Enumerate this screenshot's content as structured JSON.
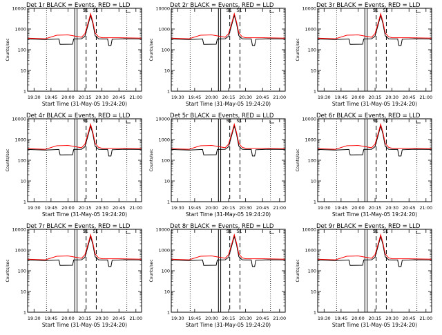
{
  "colors": {
    "events": "#000000",
    "lld": "#ff0000",
    "axes": "#000000",
    "background": "#ffffff"
  },
  "shared": {
    "ylabel": "Counts/sec",
    "xlabel": "Start Time (31-May-05 19:24:20)",
    "x_ticks": [
      "19:30",
      "19:45",
      "20:00",
      "20:15",
      "20:30",
      "20:45",
      "21:00"
    ],
    "y_ticks": [
      "1",
      "10",
      "100",
      "1000",
      "10000"
    ],
    "legend_marks": [
      "S1",
      "S1"
    ]
  },
  "chart_data": [
    {
      "type": "line",
      "title": "Det 1r BLACK = Events, RED = LLD",
      "xlim": [
        "19:24:20",
        "21:05"
      ],
      "ylim": [
        1,
        10000
      ],
      "y_scale": "log",
      "series": [
        {
          "name": "Events",
          "color": "#000000",
          "x": [
            "19:24",
            "19:40",
            "19:52",
            "19:53",
            "20:04",
            "20:05",
            "20:12",
            "20:15",
            "20:18",
            "20:20",
            "20:22",
            "20:24",
            "20:27",
            "20:30",
            "20:35",
            "20:36",
            "20:38",
            "20:39",
            "20:50",
            "21:05"
          ],
          "y": [
            330,
            310,
            330,
            180,
            185,
            330,
            340,
            450,
            1800,
            4500,
            1800,
            480,
            340,
            330,
            330,
            160,
            160,
            320,
            340,
            330
          ]
        },
        {
          "name": "LLD",
          "color": "#ff0000",
          "x": [
            "19:24",
            "19:40",
            "19:50",
            "20:00",
            "20:12",
            "20:15",
            "20:18",
            "20:20",
            "20:22",
            "20:24",
            "20:27",
            "20:30",
            "20:45",
            "21:05"
          ],
          "y": [
            360,
            340,
            500,
            520,
            400,
            600,
            2200,
            5500,
            2200,
            650,
            420,
            380,
            380,
            360
          ]
        }
      ],
      "markers": {
        "solid": [
          "20:06",
          "20:08"
        ],
        "dashed": [
          "20:16",
          "20:25"
        ],
        "dotted": [
          "19:41",
          "20:52"
        ]
      }
    },
    {
      "type": "line",
      "title": "Det 2r BLACK = Events, RED = LLD",
      "xlim": [
        "19:24:20",
        "21:05"
      ],
      "ylim": [
        1,
        10000
      ],
      "y_scale": "log",
      "series": [
        {
          "name": "Events",
          "color": "#000000",
          "x": [
            "19:24",
            "19:40",
            "19:52",
            "19:53",
            "20:04",
            "20:05",
            "20:12",
            "20:15",
            "20:18",
            "20:20",
            "20:22",
            "20:24",
            "20:27",
            "20:30",
            "20:35",
            "20:36",
            "20:38",
            "20:39",
            "20:50",
            "21:05"
          ],
          "y": [
            330,
            310,
            330,
            180,
            185,
            330,
            340,
            450,
            1800,
            4500,
            1800,
            480,
            340,
            330,
            330,
            160,
            160,
            320,
            340,
            330
          ]
        },
        {
          "name": "LLD",
          "color": "#ff0000",
          "x": [
            "19:24",
            "19:40",
            "19:50",
            "20:00",
            "20:12",
            "20:15",
            "20:18",
            "20:20",
            "20:22",
            "20:24",
            "20:27",
            "20:30",
            "20:45",
            "21:05"
          ],
          "y": [
            360,
            340,
            500,
            520,
            400,
            600,
            2200,
            5500,
            2200,
            650,
            420,
            380,
            380,
            360
          ]
        }
      ],
      "markers": {
        "solid": [
          "20:06",
          "20:08"
        ],
        "dashed": [
          "20:16",
          "20:25"
        ],
        "dotted": [
          "19:41",
          "20:52"
        ]
      }
    },
    {
      "type": "line",
      "title": "Det 3r BLACK = Events, RED = LLD",
      "xlim": [
        "19:24:20",
        "21:05"
      ],
      "ylim": [
        1,
        10000
      ],
      "y_scale": "log",
      "series": [
        {
          "name": "Events",
          "color": "#000000",
          "x": [
            "19:24",
            "19:40",
            "19:52",
            "19:53",
            "20:04",
            "20:05",
            "20:12",
            "20:15",
            "20:18",
            "20:20",
            "20:22",
            "20:24",
            "20:27",
            "20:30",
            "20:35",
            "20:36",
            "20:38",
            "20:39",
            "20:50",
            "21:05"
          ],
          "y": [
            330,
            310,
            330,
            180,
            185,
            330,
            340,
            450,
            1800,
            4500,
            1800,
            480,
            340,
            330,
            330,
            160,
            160,
            320,
            340,
            330
          ]
        },
        {
          "name": "LLD",
          "color": "#ff0000",
          "x": [
            "19:24",
            "19:40",
            "19:50",
            "20:00",
            "20:12",
            "20:15",
            "20:18",
            "20:20",
            "20:22",
            "20:24",
            "20:27",
            "20:30",
            "20:45",
            "21:05"
          ],
          "y": [
            360,
            340,
            500,
            520,
            400,
            600,
            2200,
            5500,
            2200,
            650,
            420,
            380,
            380,
            360
          ]
        }
      ],
      "markers": {
        "solid": [
          "20:06",
          "20:08"
        ],
        "dashed": [
          "20:16",
          "20:25"
        ],
        "dotted": [
          "19:41",
          "20:52"
        ]
      }
    },
    {
      "type": "line",
      "title": "Det 4r BLACK = Events, RED = LLD",
      "xlim": [
        "19:24:20",
        "21:05"
      ],
      "ylim": [
        1,
        10000
      ],
      "y_scale": "log",
      "series": [
        {
          "name": "Events",
          "color": "#000000",
          "x": [
            "19:24",
            "19:40",
            "19:52",
            "19:53",
            "20:04",
            "20:05",
            "20:12",
            "20:15",
            "20:18",
            "20:20",
            "20:22",
            "20:24",
            "20:27",
            "20:30",
            "20:35",
            "20:36",
            "20:38",
            "20:39",
            "20:50",
            "21:05"
          ],
          "y": [
            330,
            310,
            330,
            180,
            185,
            330,
            340,
            450,
            1800,
            4500,
            1800,
            480,
            340,
            330,
            330,
            160,
            160,
            320,
            340,
            330
          ]
        },
        {
          "name": "LLD",
          "color": "#ff0000",
          "x": [
            "19:24",
            "19:40",
            "19:50",
            "20:00",
            "20:12",
            "20:15",
            "20:18",
            "20:20",
            "20:22",
            "20:24",
            "20:27",
            "20:30",
            "20:45",
            "21:05"
          ],
          "y": [
            360,
            340,
            500,
            520,
            400,
            600,
            2200,
            5500,
            2200,
            650,
            420,
            380,
            380,
            360
          ]
        }
      ],
      "markers": {
        "solid": [
          "20:06",
          "20:08"
        ],
        "dashed": [
          "20:16",
          "20:25"
        ],
        "dotted": [
          "19:41",
          "20:52"
        ]
      }
    },
    {
      "type": "line",
      "title": "Det 5r BLACK = Events, RED = LLD",
      "xlim": [
        "19:24:20",
        "21:05"
      ],
      "ylim": [
        1,
        10000
      ],
      "y_scale": "log",
      "series": [
        {
          "name": "Events",
          "color": "#000000",
          "x": [
            "19:24",
            "19:40",
            "19:52",
            "19:53",
            "20:04",
            "20:05",
            "20:12",
            "20:15",
            "20:18",
            "20:20",
            "20:22",
            "20:24",
            "20:27",
            "20:30",
            "20:35",
            "20:36",
            "20:38",
            "20:39",
            "20:50",
            "21:05"
          ],
          "y": [
            330,
            310,
            330,
            180,
            185,
            330,
            340,
            450,
            1800,
            4500,
            1800,
            480,
            340,
            330,
            330,
            160,
            160,
            320,
            340,
            330
          ]
        },
        {
          "name": "LLD",
          "color": "#ff0000",
          "x": [
            "19:24",
            "19:40",
            "19:50",
            "20:00",
            "20:12",
            "20:15",
            "20:18",
            "20:20",
            "20:22",
            "20:24",
            "20:27",
            "20:30",
            "20:45",
            "21:05"
          ],
          "y": [
            360,
            340,
            500,
            520,
            400,
            600,
            2200,
            5500,
            2200,
            650,
            420,
            380,
            380,
            360
          ]
        }
      ],
      "markers": {
        "solid": [
          "20:06",
          "20:08"
        ],
        "dashed": [
          "20:16",
          "20:25"
        ],
        "dotted": [
          "19:41",
          "20:52"
        ]
      }
    },
    {
      "type": "line",
      "title": "Det 6r BLACK = Events, RED = LLD",
      "xlim": [
        "19:24:20",
        "21:05"
      ],
      "ylim": [
        1,
        10000
      ],
      "y_scale": "log",
      "series": [
        {
          "name": "Events",
          "color": "#000000",
          "x": [
            "19:24",
            "19:40",
            "19:52",
            "19:53",
            "20:04",
            "20:05",
            "20:12",
            "20:15",
            "20:18",
            "20:20",
            "20:22",
            "20:24",
            "20:27",
            "20:30",
            "20:35",
            "20:36",
            "20:38",
            "20:39",
            "20:50",
            "21:05"
          ],
          "y": [
            330,
            310,
            330,
            180,
            185,
            330,
            340,
            450,
            1800,
            4500,
            1800,
            480,
            340,
            330,
            330,
            160,
            160,
            320,
            340,
            330
          ]
        },
        {
          "name": "LLD",
          "color": "#ff0000",
          "x": [
            "19:24",
            "19:40",
            "19:50",
            "20:00",
            "20:12",
            "20:15",
            "20:18",
            "20:20",
            "20:22",
            "20:24",
            "20:27",
            "20:30",
            "20:45",
            "21:05"
          ],
          "y": [
            360,
            340,
            500,
            520,
            400,
            600,
            2200,
            5500,
            2200,
            650,
            420,
            380,
            380,
            360
          ]
        }
      ],
      "markers": {
        "solid": [
          "20:06",
          "20:08"
        ],
        "dashed": [
          "20:16",
          "20:25"
        ],
        "dotted": [
          "19:41",
          "20:52"
        ]
      }
    },
    {
      "type": "line",
      "title": "Det 7r BLACK = Events, RED = LLD",
      "xlim": [
        "19:24:20",
        "21:05"
      ],
      "ylim": [
        1,
        10000
      ],
      "y_scale": "log",
      "series": [
        {
          "name": "Events",
          "color": "#000000",
          "x": [
            "19:24",
            "19:40",
            "19:52",
            "19:53",
            "20:04",
            "20:05",
            "20:12",
            "20:15",
            "20:18",
            "20:20",
            "20:22",
            "20:24",
            "20:27",
            "20:30",
            "20:35",
            "20:36",
            "20:38",
            "20:39",
            "20:50",
            "21:05"
          ],
          "y": [
            330,
            310,
            330,
            180,
            185,
            330,
            340,
            450,
            1800,
            4500,
            1800,
            480,
            340,
            330,
            330,
            160,
            160,
            320,
            340,
            330
          ]
        },
        {
          "name": "LLD",
          "color": "#ff0000",
          "x": [
            "19:24",
            "19:40",
            "19:50",
            "20:00",
            "20:12",
            "20:15",
            "20:18",
            "20:20",
            "20:22",
            "20:24",
            "20:27",
            "20:30",
            "20:45",
            "21:05"
          ],
          "y": [
            360,
            340,
            500,
            520,
            400,
            600,
            2200,
            5500,
            2200,
            650,
            420,
            380,
            380,
            360
          ]
        }
      ],
      "markers": {
        "solid": [
          "20:06",
          "20:08"
        ],
        "dashed": [
          "20:16",
          "20:25"
        ],
        "dotted": [
          "19:41",
          "20:52"
        ]
      }
    },
    {
      "type": "line",
      "title": "Det 8r BLACK = Events, RED = LLD",
      "xlim": [
        "19:24:20",
        "21:05"
      ],
      "ylim": [
        1,
        10000
      ],
      "y_scale": "log",
      "series": [
        {
          "name": "Events",
          "color": "#000000",
          "x": [
            "19:24",
            "19:40",
            "19:52",
            "19:53",
            "20:04",
            "20:05",
            "20:12",
            "20:15",
            "20:18",
            "20:20",
            "20:22",
            "20:24",
            "20:27",
            "20:30",
            "20:35",
            "20:36",
            "20:38",
            "20:39",
            "20:50",
            "21:05"
          ],
          "y": [
            330,
            310,
            330,
            180,
            185,
            330,
            340,
            450,
            1800,
            4500,
            1800,
            480,
            340,
            330,
            330,
            160,
            160,
            320,
            340,
            330
          ]
        },
        {
          "name": "LLD",
          "color": "#ff0000",
          "x": [
            "19:24",
            "19:40",
            "19:50",
            "20:00",
            "20:12",
            "20:15",
            "20:18",
            "20:20",
            "20:22",
            "20:24",
            "20:27",
            "20:30",
            "20:45",
            "21:05"
          ],
          "y": [
            360,
            340,
            500,
            520,
            400,
            600,
            2200,
            5500,
            2200,
            650,
            420,
            380,
            380,
            360
          ]
        }
      ],
      "markers": {
        "solid": [
          "20:06",
          "20:08"
        ],
        "dashed": [
          "20:16",
          "20:25"
        ],
        "dotted": [
          "19:41",
          "20:52"
        ]
      }
    },
    {
      "type": "line",
      "title": "Det 9r BLACK = Events, RED = LLD",
      "xlim": [
        "19:24:20",
        "21:05"
      ],
      "ylim": [
        1,
        10000
      ],
      "y_scale": "log",
      "series": [
        {
          "name": "Events",
          "color": "#000000",
          "x": [
            "19:24",
            "19:40",
            "19:52",
            "19:53",
            "20:04",
            "20:05",
            "20:12",
            "20:15",
            "20:18",
            "20:20",
            "20:22",
            "20:24",
            "20:27",
            "20:30",
            "20:35",
            "20:36",
            "20:38",
            "20:39",
            "20:50",
            "21:05"
          ],
          "y": [
            330,
            310,
            330,
            180,
            185,
            330,
            340,
            450,
            1800,
            4500,
            1800,
            480,
            340,
            330,
            330,
            160,
            160,
            320,
            340,
            330
          ]
        },
        {
          "name": "LLD",
          "color": "#ff0000",
          "x": [
            "19:24",
            "19:40",
            "19:50",
            "20:00",
            "20:12",
            "20:15",
            "20:18",
            "20:20",
            "20:22",
            "20:24",
            "20:27",
            "20:30",
            "20:45",
            "21:05"
          ],
          "y": [
            360,
            340,
            500,
            520,
            400,
            600,
            2200,
            5500,
            2200,
            650,
            420,
            380,
            380,
            360
          ]
        }
      ],
      "markers": {
        "solid": [
          "20:06",
          "20:08"
        ],
        "dashed": [
          "20:16",
          "20:25"
        ],
        "dotted": [
          "19:41",
          "20:52"
        ]
      }
    }
  ]
}
